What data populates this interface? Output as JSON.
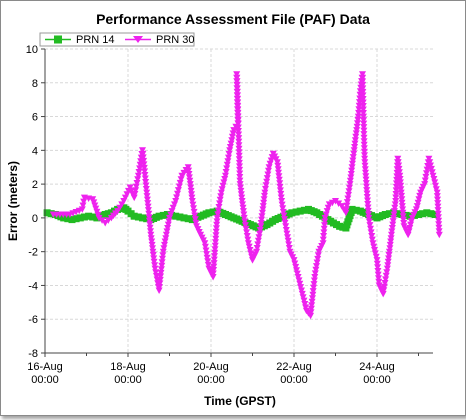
{
  "chart_data": {
    "type": "line",
    "title": "Performance Assessment File (PAF) Data",
    "xlabel": "Time (GPST)",
    "ylabel": "Error (meters)",
    "ylim": [
      -8,
      10
    ],
    "yticks": [
      -8,
      -6,
      -4,
      -2,
      0,
      2,
      4,
      6,
      8,
      10
    ],
    "xlim": [
      "2010-08-16 00:00",
      "2010-08-25 12:00"
    ],
    "xticks": [
      {
        "day": 0,
        "line1": "16-Aug",
        "line2": "00:00"
      },
      {
        "day": 2,
        "line1": "18-Aug",
        "line2": "00:00"
      },
      {
        "day": 4,
        "line1": "20-Aug",
        "line2": "00:00"
      },
      {
        "day": 6,
        "line1": "22-Aug",
        "line2": "00:00"
      },
      {
        "day": 8,
        "line1": "24-Aug",
        "line2": "00:00"
      }
    ],
    "grid": true,
    "legend_position": "top-left",
    "series": [
      {
        "name": "PRN 14",
        "color": "#22bb22",
        "marker": "square",
        "points": [
          [
            0.05,
            0.3
          ],
          [
            0.25,
            0.2
          ],
          [
            0.45,
            0.0
          ],
          [
            0.65,
            -0.1
          ],
          [
            0.85,
            0.0
          ],
          [
            1.05,
            0.1
          ],
          [
            1.25,
            0.0
          ],
          [
            1.45,
            0.2
          ],
          [
            1.6,
            0.3
          ],
          [
            1.75,
            0.5
          ],
          [
            1.9,
            0.6
          ],
          [
            2.0,
            0.4
          ],
          [
            2.15,
            0.1
          ],
          [
            2.35,
            0.0
          ],
          [
            2.55,
            -0.1
          ],
          [
            2.75,
            0.1
          ],
          [
            2.95,
            0.2
          ],
          [
            3.15,
            0.1
          ],
          [
            3.35,
            0.0
          ],
          [
            3.55,
            -0.1
          ],
          [
            3.75,
            0.1
          ],
          [
            3.95,
            0.3
          ],
          [
            4.15,
            0.4
          ],
          [
            4.35,
            0.2
          ],
          [
            4.55,
            0.0
          ],
          [
            4.75,
            -0.2
          ],
          [
            4.95,
            -0.4
          ],
          [
            5.15,
            -0.6
          ],
          [
            5.35,
            -0.4
          ],
          [
            5.55,
            -0.1
          ],
          [
            5.75,
            0.1
          ],
          [
            5.95,
            0.3
          ],
          [
            6.15,
            0.4
          ],
          [
            6.35,
            0.5
          ],
          [
            6.55,
            0.3
          ],
          [
            6.75,
            0.0
          ],
          [
            6.95,
            -0.3
          ],
          [
            7.1,
            -0.5
          ],
          [
            7.25,
            -0.6
          ],
          [
            7.4,
            0.5
          ],
          [
            7.6,
            0.4
          ],
          [
            7.8,
            0.2
          ],
          [
            8.0,
            0.0
          ],
          [
            8.2,
            0.2
          ],
          [
            8.4,
            0.3
          ],
          [
            8.6,
            0.2
          ],
          [
            8.8,
            0.1
          ],
          [
            9.0,
            0.2
          ],
          [
            9.2,
            0.3
          ],
          [
            9.4,
            0.2
          ]
        ]
      },
      {
        "name": "PRN 30",
        "color": "#ee22ee",
        "marker": "triangle-down",
        "points": [
          [
            0.2,
            0.2
          ],
          [
            0.6,
            0.2
          ],
          [
            0.9,
            0.5
          ],
          [
            0.95,
            1.2
          ],
          [
            1.15,
            1.1
          ],
          [
            1.3,
            0.0
          ],
          [
            1.45,
            -0.3
          ],
          [
            1.6,
            0.0
          ],
          [
            1.75,
            0.4
          ],
          [
            1.9,
            1.0
          ],
          [
            2.05,
            1.8
          ],
          [
            2.15,
            1.2
          ],
          [
            2.25,
            2.5
          ],
          [
            2.35,
            4.0
          ],
          [
            2.45,
            1.5
          ],
          [
            2.55,
            -1.0
          ],
          [
            2.65,
            -3.0
          ],
          [
            2.75,
            -4.3
          ],
          [
            2.85,
            -2.0
          ],
          [
            3.0,
            0.0
          ],
          [
            3.15,
            1.0
          ],
          [
            3.3,
            2.5
          ],
          [
            3.45,
            3.0
          ],
          [
            3.55,
            1.0
          ],
          [
            3.65,
            -0.5
          ],
          [
            3.75,
            -1.0
          ],
          [
            3.85,
            -1.5
          ],
          [
            3.95,
            -3.0
          ],
          [
            4.05,
            -3.5
          ],
          [
            4.15,
            0.0
          ],
          [
            4.25,
            1.5
          ],
          [
            4.35,
            2.5
          ],
          [
            4.45,
            4.0
          ],
          [
            4.55,
            5.2
          ],
          [
            4.65,
            5.6
          ],
          [
            4.62,
            8.5
          ],
          [
            4.7,
            2.0
          ],
          [
            4.8,
            0.0
          ],
          [
            4.9,
            -1.5
          ],
          [
            5.0,
            -2.5
          ],
          [
            5.1,
            -2.0
          ],
          [
            5.2,
            -0.5
          ],
          [
            5.3,
            1.5
          ],
          [
            5.4,
            3.0
          ],
          [
            5.5,
            3.8
          ],
          [
            5.6,
            3.3
          ],
          [
            5.7,
            1.0
          ],
          [
            5.8,
            -0.5
          ],
          [
            5.9,
            -2.0
          ],
          [
            6.0,
            -2.5
          ],
          [
            6.1,
            -3.5
          ],
          [
            6.2,
            -4.5
          ],
          [
            6.3,
            -5.5
          ],
          [
            6.4,
            -5.8
          ],
          [
            6.5,
            -3.5
          ],
          [
            6.6,
            -2.0
          ],
          [
            6.7,
            -1.5
          ],
          [
            6.75,
            0.0
          ],
          [
            6.85,
            0.8
          ],
          [
            7.0,
            1.0
          ],
          [
            7.15,
            0.7
          ],
          [
            7.25,
            0.3
          ],
          [
            7.35,
            2.0
          ],
          [
            7.45,
            4.0
          ],
          [
            7.55,
            6.0
          ],
          [
            7.6,
            7.5
          ],
          [
            7.65,
            8.5
          ],
          [
            7.7,
            3.5
          ],
          [
            7.8,
            0.0
          ],
          [
            7.9,
            -1.5
          ],
          [
            8.0,
            -2.5
          ],
          [
            8.05,
            -4.0
          ],
          [
            8.15,
            -4.5
          ],
          [
            8.25,
            -3.0
          ],
          [
            8.35,
            -1.0
          ],
          [
            8.45,
            1.0
          ],
          [
            8.5,
            3.5
          ],
          [
            8.55,
            2.5
          ],
          [
            8.65,
            -0.5
          ],
          [
            8.75,
            -1.0
          ],
          [
            8.85,
            0.0
          ],
          [
            8.95,
            0.5
          ],
          [
            9.05,
            1.5
          ],
          [
            9.15,
            2.0
          ],
          [
            9.25,
            3.5
          ],
          [
            9.35,
            2.5
          ],
          [
            9.45,
            1.5
          ],
          [
            9.5,
            -1.0
          ]
        ]
      }
    ]
  }
}
